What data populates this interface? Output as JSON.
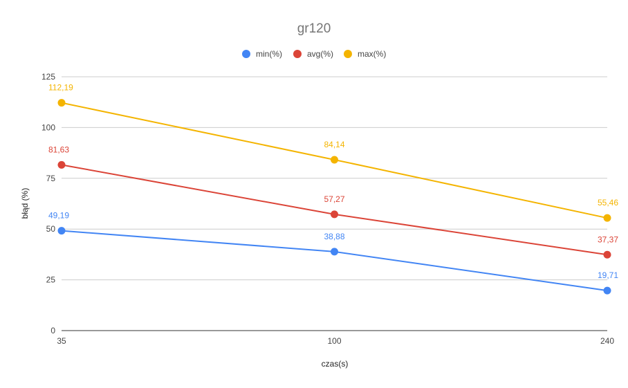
{
  "chart_data": {
    "type": "line",
    "title": "gr120",
    "xlabel": "czas(s)",
    "ylabel": "błąd (%)",
    "x": [
      35,
      100,
      240
    ],
    "x_tick_labels": [
      "35",
      "100",
      "240"
    ],
    "ylim": [
      0,
      125
    ],
    "y_ticks": [
      0,
      25,
      50,
      75,
      100,
      125
    ],
    "y_tick_labels": [
      "0",
      "25",
      "50",
      "75",
      "100",
      "125"
    ],
    "grid": true,
    "legend_position": "top",
    "series": [
      {
        "name": "min(%)",
        "color": "#4285f4",
        "values": [
          49.19,
          38.88,
          19.71
        ],
        "labels": [
          "49,19",
          "38,88",
          "19,71"
        ]
      },
      {
        "name": "avg(%)",
        "color": "#db4437",
        "values": [
          81.63,
          57.27,
          37.37
        ],
        "labels": [
          "81,63",
          "57,27",
          "37,37"
        ]
      },
      {
        "name": "max(%)",
        "color": "#f4b400",
        "values": [
          112.19,
          84.14,
          55.46
        ],
        "labels": [
          "112,19",
          "84,14",
          "55,46"
        ]
      }
    ]
  }
}
